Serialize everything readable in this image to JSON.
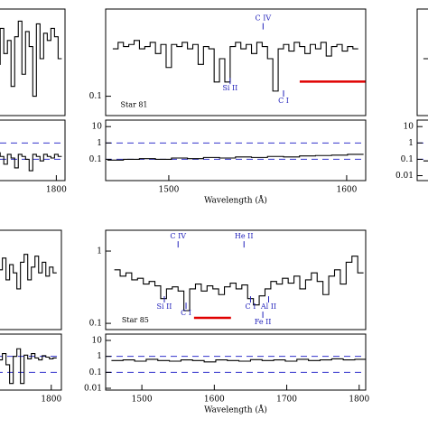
{
  "chart_data": [
    {
      "type": "line",
      "log_y": true,
      "step": true,
      "color": "#000000",
      "xlim": [
        1453,
        1812
      ],
      "ylim": [
        0.07,
        0.5
      ],
      "xticks": [],
      "x": [
        1705,
        1710,
        1715,
        1720,
        1725,
        1730,
        1735,
        1740,
        1745,
        1750,
        1755,
        1760,
        1765,
        1770,
        1775,
        1780,
        1785,
        1790,
        1795,
        1800,
        1805
      ],
      "values": [
        0.25,
        0.2,
        0.3,
        0.18,
        0.35,
        0.22,
        0.28,
        0.12,
        0.3,
        0.4,
        0.15,
        0.33,
        0.25,
        0.1,
        0.38,
        0.2,
        0.32,
        0.28,
        0.35,
        0.3,
        0.2
      ]
    },
    {
      "type": "line",
      "log_y": true,
      "step": true,
      "color": "#000000",
      "xlim": [
        1453,
        1812
      ],
      "ylim": [
        0.005,
        25
      ],
      "xticks": [
        1800
      ],
      "reference_lines": [
        1,
        0.1
      ],
      "ref_color": "#3333cc",
      "x": [
        1705,
        1710,
        1715,
        1720,
        1725,
        1730,
        1735,
        1740,
        1745,
        1750,
        1755,
        1760,
        1765,
        1770,
        1775,
        1780,
        1785,
        1790,
        1795,
        1800,
        1805
      ],
      "values": [
        0.15,
        0.2,
        0.1,
        0.25,
        0.15,
        0.05,
        0.2,
        0.12,
        0.03,
        0.2,
        0.15,
        0.1,
        0.02,
        0.2,
        0.15,
        0.08,
        0.2,
        0.15,
        0.12,
        0.2,
        0.15
      ]
    },
    {
      "type": "line",
      "log_y": true,
      "step": true,
      "color": "#000000",
      "xlim": [
        1464.5,
        1610.7
      ],
      "ylim": [
        0.07,
        0.5
      ],
      "yticks": [
        0.1
      ],
      "x": [
        1470,
        1473,
        1476,
        1479,
        1482,
        1485,
        1488,
        1491,
        1494,
        1497,
        1500,
        1503,
        1506,
        1509,
        1512,
        1515,
        1518,
        1521,
        1524,
        1527,
        1530,
        1533,
        1536,
        1539,
        1542,
        1545,
        1548,
        1551,
        1554,
        1557,
        1560,
        1563,
        1566,
        1569,
        1572,
        1575,
        1578,
        1581,
        1584,
        1587,
        1590,
        1593,
        1596,
        1599,
        1602,
        1605
      ],
      "values": [
        0.24,
        0.27,
        0.25,
        0.26,
        0.28,
        0.24,
        0.25,
        0.27,
        0.22,
        0.26,
        0.17,
        0.26,
        0.25,
        0.27,
        0.24,
        0.26,
        0.18,
        0.25,
        0.24,
        0.13,
        0.2,
        0.13,
        0.25,
        0.27,
        0.24,
        0.26,
        0.22,
        0.27,
        0.25,
        0.2,
        0.11,
        0.24,
        0.26,
        0.23,
        0.27,
        0.25,
        0.22,
        0.26,
        0.24,
        0.27,
        0.21,
        0.25,
        0.26,
        0.23,
        0.25,
        0.24
      ],
      "annotations": [
        {
          "text": "C IV",
          "x": 1553,
          "y": 0.419,
          "color": "#2222bb"
        },
        {
          "text": "Si II",
          "x": 1534.5,
          "y": 0.115,
          "color": "#2222bb"
        },
        {
          "text": "C I",
          "x": 1564.5,
          "y": 0.0913,
          "color": "#2222bb"
        },
        {
          "text": "Star 81",
          "x": 1480.5,
          "y": 0.085,
          "color": "#000000"
        }
      ],
      "segments": [
        {
          "x": [
            1573.6,
            1611
          ],
          "y": 0.131,
          "color": "#e00000"
        }
      ]
    },
    {
      "type": "line",
      "log_y": true,
      "step": true,
      "color": "#000000",
      "xlim": [
        1464.5,
        1610.7
      ],
      "ylim": [
        0.005,
        25
      ],
      "yticks": [
        0.1,
        1,
        10
      ],
      "xticks": [
        1500,
        1600
      ],
      "reference_lines": [
        1,
        0.1
      ],
      "ref_color": "#3333cc",
      "x_label": "Wavelength (Å)",
      "x": [
        1470,
        1479,
        1488,
        1497,
        1506,
        1515,
        1524,
        1533,
        1542,
        1551,
        1560,
        1569,
        1578,
        1587,
        1596,
        1605
      ],
      "values": [
        0.09,
        0.1,
        0.11,
        0.1,
        0.12,
        0.11,
        0.13,
        0.12,
        0.14,
        0.13,
        0.15,
        0.14,
        0.16,
        0.17,
        0.18,
        0.2
      ]
    },
    {
      "type": "line",
      "log_y": true,
      "step": true,
      "color": "#000000",
      "xlim": [
        1460,
        1606
      ],
      "ylim": [
        0.07,
        0.5
      ],
      "x": [
        1465,
        1468,
        1471,
        1474,
        1477
      ],
      "values": [
        0.2,
        0.22,
        0.18,
        0.21,
        0.2
      ]
    },
    {
      "type": "line",
      "log_y": true,
      "step": true,
      "color": "#000000",
      "xlim": [
        1460,
        1606
      ],
      "ylim": [
        0.005,
        25
      ],
      "yticks": [
        0.01,
        0.1,
        1,
        10
      ],
      "reference_lines": [
        1,
        0.1
      ],
      "ref_color": "#3333cc",
      "x": [
        1465,
        1468,
        1471,
        1474,
        1477
      ],
      "values": [
        0.08,
        0.02,
        0.1,
        0.09,
        0.1
      ]
    },
    {
      "type": "line",
      "log_y": true,
      "step": true,
      "color": "#000000",
      "xlim": [
        1455,
        1814
      ],
      "ylim": [
        0.082,
        1.94
      ],
      "x": [
        1710,
        1715,
        1720,
        1725,
        1730,
        1735,
        1740,
        1745,
        1750,
        1755,
        1760,
        1765,
        1770,
        1775,
        1780,
        1785,
        1790,
        1795,
        1800,
        1805
      ],
      "values": [
        0.5,
        0.6,
        0.45,
        0.7,
        0.55,
        0.8,
        0.4,
        0.65,
        0.5,
        0.3,
        0.7,
        0.9,
        0.4,
        0.6,
        0.85,
        0.5,
        0.7,
        0.45,
        0.6,
        0.5
      ]
    },
    {
      "type": "line",
      "log_y": true,
      "step": true,
      "color": "#000000",
      "xlim": [
        1455,
        1814
      ],
      "ylim": [
        0.0077,
        25
      ],
      "xticks": [
        1800
      ],
      "reference_lines": [
        1,
        0.1
      ],
      "ref_color": "#3333cc",
      "x": [
        1710,
        1715,
        1720,
        1725,
        1730,
        1735,
        1740,
        1745,
        1750,
        1755,
        1760,
        1765,
        1770,
        1775,
        1780,
        1785,
        1790,
        1795,
        1800,
        1805
      ],
      "values": [
        0.8,
        1.2,
        0.5,
        2,
        0.6,
        1.5,
        0.3,
        0.02,
        1,
        3,
        0.02,
        1.2,
        0.7,
        1.5,
        0.8,
        0.6,
        1.1,
        0.9,
        0.7,
        0.8
      ]
    },
    {
      "type": "line",
      "log_y": true,
      "step": true,
      "color": "#000000",
      "xlim": [
        1450,
        1809
      ],
      "ylim": [
        0.082,
        1.94
      ],
      "yticks": [
        0.1,
        1
      ],
      "x": [
        1466,
        1474,
        1482,
        1490,
        1498,
        1506,
        1514,
        1522,
        1530,
        1538,
        1546,
        1554,
        1562,
        1570,
        1578,
        1586,
        1594,
        1602,
        1610,
        1618,
        1626,
        1634,
        1642,
        1650,
        1658,
        1666,
        1674,
        1682,
        1690,
        1698,
        1706,
        1714,
        1722,
        1730,
        1738,
        1746,
        1754,
        1762,
        1770,
        1778,
        1786,
        1794,
        1802
      ],
      "values": [
        0.55,
        0.45,
        0.5,
        0.4,
        0.42,
        0.35,
        0.38,
        0.33,
        0.22,
        0.3,
        0.32,
        0.28,
        0.15,
        0.3,
        0.35,
        0.28,
        0.33,
        0.3,
        0.25,
        0.32,
        0.36,
        0.3,
        0.34,
        0.22,
        0.18,
        0.24,
        0.3,
        0.38,
        0.35,
        0.42,
        0.36,
        0.45,
        0.3,
        0.4,
        0.5,
        0.38,
        0.25,
        0.45,
        0.55,
        0.35,
        0.7,
        0.85,
        0.5
      ],
      "annotations": [
        {
          "text": "C IV",
          "x": 1550,
          "y": 1.58,
          "color": "#2222bb"
        },
        {
          "text": "He II",
          "x": 1641,
          "y": 1.58,
          "color": "#2222bb"
        },
        {
          "text": "Si II",
          "x": 1531,
          "y": 0.168,
          "color": "#2222bb"
        },
        {
          "text": "C I",
          "x": 1561,
          "y": 0.137,
          "color": "#2222bb"
        },
        {
          "text": "C I",
          "x": 1650,
          "y": 0.168,
          "color": "#2222bb"
        },
        {
          "text": "Al II",
          "x": 1675,
          "y": 0.168,
          "color": "#2222bb"
        },
        {
          "text": "Fe II",
          "x": 1667,
          "y": 0.103,
          "color": "#2222bb"
        },
        {
          "text": "Star 85",
          "x": 1491,
          "y": 0.109,
          "color": "#000000"
        }
      ],
      "segments": [
        {
          "x": [
            1572,
            1623
          ],
          "y": 0.119,
          "color": "#e00000"
        }
      ]
    },
    {
      "type": "line",
      "log_y": true,
      "step": true,
      "color": "#000000",
      "xlim": [
        1450,
        1809
      ],
      "ylim": [
        0.0077,
        25
      ],
      "yticks": [
        0.01,
        0.1,
        1,
        10
      ],
      "xticks": [
        1500,
        1600,
        1700,
        1800
      ],
      "reference_lines": [
        1,
        0.1
      ],
      "ref_color": "#3333cc",
      "x_label": "Wavelength (Å)",
      "x": [
        1466,
        1482,
        1498,
        1514,
        1530,
        1546,
        1562,
        1578,
        1594,
        1610,
        1626,
        1642,
        1658,
        1674,
        1690,
        1706,
        1722,
        1738,
        1754,
        1770,
        1786,
        1802
      ],
      "values": [
        0.55,
        0.6,
        0.5,
        0.65,
        0.55,
        0.5,
        0.6,
        0.55,
        0.45,
        0.6,
        0.55,
        0.5,
        0.62,
        0.55,
        0.6,
        0.5,
        0.65,
        0.55,
        0.6,
        0.7,
        0.6,
        0.65
      ]
    }
  ]
}
